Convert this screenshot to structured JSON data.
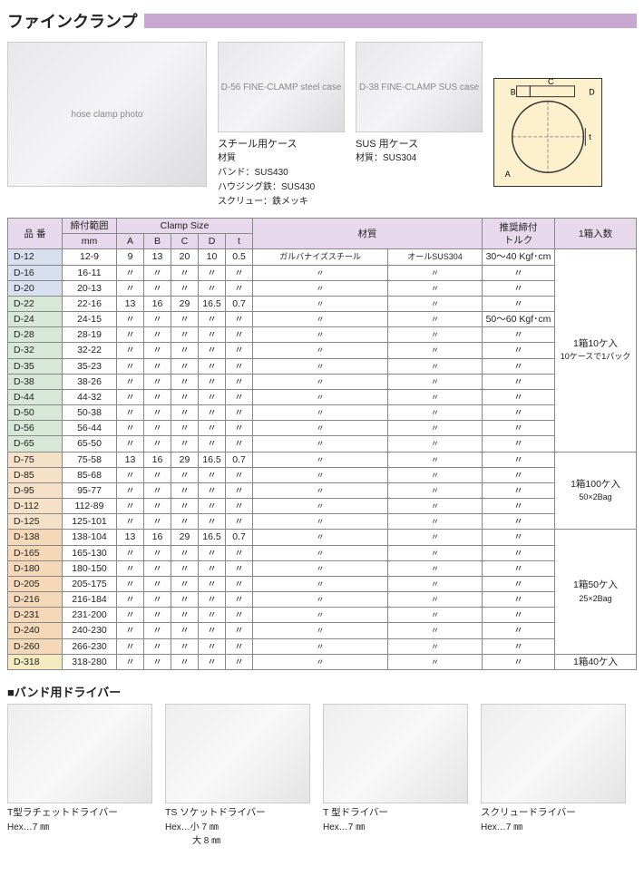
{
  "title": "ファインクランプ",
  "title_stripe_color": "#c8a8d0",
  "photos": {
    "clamp_alt": "hose clamp photo",
    "case_steel_alt": "D-56 FINE-CLAMP steel case",
    "case_sus_alt": "D-38 FINE-CLAMP SUS case"
  },
  "case_steel": {
    "label": "スチール用ケース",
    "lines": [
      "材質",
      "バンド：SUS430",
      "ハウジング鉄：SUS430",
      "スクリュー：鉄メッキ"
    ]
  },
  "case_sus": {
    "label": "SUS 用ケース",
    "lines": [
      "材質：SUS304"
    ]
  },
  "diagram_labels": {
    "A": "A",
    "B": "B",
    "C": "C",
    "D": "D",
    "t": "t"
  },
  "table": {
    "header_bg": "#e8d8ec",
    "group_bg": {
      "blue": "#d8e0ef",
      "green": "#d8e8d8",
      "orange": "#f5e0c8",
      "orange2": "#f5d8b8",
      "yellow": "#f5ebc0"
    },
    "columns": {
      "model": "品 番",
      "range": "締付範囲",
      "range_unit": "mm",
      "clamp_size": "Clamp Size",
      "clamp_sub": [
        "A",
        "B",
        "C",
        "D",
        "t"
      ],
      "material": "材質",
      "torque": "推奨締付\nトルク",
      "qty": "1箱入数"
    },
    "groups": [
      {
        "class": "row-blue",
        "qty": null,
        "rows": [
          {
            "model": "D-12",
            "range": "12-9",
            "A": "9",
            "B": "13",
            "C": "20",
            "D": "10",
            "t": "0.5",
            "mat1": "ガルバナイズスチール",
            "mat2": "オールSUS304",
            "torque": "30～40 Kgf･cm"
          },
          {
            "model": "D-16",
            "range": "16-11",
            "A": "〃",
            "B": "〃",
            "C": "〃",
            "D": "〃",
            "t": "〃",
            "mat1": "〃",
            "mat2": "〃",
            "torque": "〃"
          },
          {
            "model": "D-20",
            "range": "20-13",
            "A": "〃",
            "B": "〃",
            "C": "〃",
            "D": "〃",
            "t": "〃",
            "mat1": "〃",
            "mat2": "〃",
            "torque": "〃"
          }
        ]
      },
      {
        "class": "row-green",
        "qty": "1箱10ケ入",
        "qty_sub": "10ケースで1パック",
        "qty_span_includes_prev": true,
        "rows": [
          {
            "model": "D-22",
            "range": "22-16",
            "A": "13",
            "B": "16",
            "C": "29",
            "D": "16.5",
            "t": "0.7",
            "mat1": "〃",
            "mat2": "〃",
            "torque": "〃"
          },
          {
            "model": "D-24",
            "range": "24-15",
            "A": "〃",
            "B": "〃",
            "C": "〃",
            "D": "〃",
            "t": "〃",
            "mat1": "〃",
            "mat2": "〃",
            "torque": "50～60 Kgf･cm"
          },
          {
            "model": "D-28",
            "range": "28-19",
            "A": "〃",
            "B": "〃",
            "C": "〃",
            "D": "〃",
            "t": "〃",
            "mat1": "〃",
            "mat2": "〃",
            "torque": "〃"
          },
          {
            "model": "D-32",
            "range": "32-22",
            "A": "〃",
            "B": "〃",
            "C": "〃",
            "D": "〃",
            "t": "〃",
            "mat1": "〃",
            "mat2": "〃",
            "torque": "〃"
          },
          {
            "model": "D-35",
            "range": "35-23",
            "A": "〃",
            "B": "〃",
            "C": "〃",
            "D": "〃",
            "t": "〃",
            "mat1": "〃",
            "mat2": "〃",
            "torque": "〃"
          },
          {
            "model": "D-38",
            "range": "38-26",
            "A": "〃",
            "B": "〃",
            "C": "〃",
            "D": "〃",
            "t": "〃",
            "mat1": "〃",
            "mat2": "〃",
            "torque": "〃"
          },
          {
            "model": "D-44",
            "range": "44-32",
            "A": "〃",
            "B": "〃",
            "C": "〃",
            "D": "〃",
            "t": "〃",
            "mat1": "〃",
            "mat2": "〃",
            "torque": "〃"
          },
          {
            "model": "D-50",
            "range": "50-38",
            "A": "〃",
            "B": "〃",
            "C": "〃",
            "D": "〃",
            "t": "〃",
            "mat1": "〃",
            "mat2": "〃",
            "torque": "〃"
          },
          {
            "model": "D-56",
            "range": "56-44",
            "A": "〃",
            "B": "〃",
            "C": "〃",
            "D": "〃",
            "t": "〃",
            "mat1": "〃",
            "mat2": "〃",
            "torque": "〃"
          },
          {
            "model": "D-65",
            "range": "65-50",
            "A": "〃",
            "B": "〃",
            "C": "〃",
            "D": "〃",
            "t": "〃",
            "mat1": "〃",
            "mat2": "〃",
            "torque": "〃"
          }
        ]
      },
      {
        "class": "row-orange",
        "qty": "1箱100ケ入",
        "qty_sub": "50×2Bag",
        "rows": [
          {
            "model": "D-75",
            "range": "75-58",
            "A": "13",
            "B": "16",
            "C": "29",
            "D": "16.5",
            "t": "0.7",
            "mat1": "〃",
            "mat2": "〃",
            "torque": "〃"
          },
          {
            "model": "D-85",
            "range": "85-68",
            "A": "〃",
            "B": "〃",
            "C": "〃",
            "D": "〃",
            "t": "〃",
            "mat1": "〃",
            "mat2": "〃",
            "torque": "〃"
          },
          {
            "model": "D-95",
            "range": "95-77",
            "A": "〃",
            "B": "〃",
            "C": "〃",
            "D": "〃",
            "t": "〃",
            "mat1": "〃",
            "mat2": "〃",
            "torque": "〃"
          },
          {
            "model": "D-112",
            "range": "112-89",
            "A": "〃",
            "B": "〃",
            "C": "〃",
            "D": "〃",
            "t": "〃",
            "mat1": "〃",
            "mat2": "〃",
            "torque": "〃"
          },
          {
            "model": "D-125",
            "range": "125-101",
            "A": "〃",
            "B": "〃",
            "C": "〃",
            "D": "〃",
            "t": "〃",
            "mat1": "〃",
            "mat2": "〃",
            "torque": "〃"
          }
        ]
      },
      {
        "class": "row-orange2",
        "qty": "1箱50ケ入",
        "qty_sub": "25×2Bag",
        "rows": [
          {
            "model": "D-138",
            "range": "138-104",
            "A": "13",
            "B": "16",
            "C": "29",
            "D": "16.5",
            "t": "0.7",
            "mat1": "〃",
            "mat2": "〃",
            "torque": "〃"
          },
          {
            "model": "D-165",
            "range": "165-130",
            "A": "〃",
            "B": "〃",
            "C": "〃",
            "D": "〃",
            "t": "〃",
            "mat1": "〃",
            "mat2": "〃",
            "torque": "〃"
          },
          {
            "model": "D-180",
            "range": "180-150",
            "A": "〃",
            "B": "〃",
            "C": "〃",
            "D": "〃",
            "t": "〃",
            "mat1": "〃",
            "mat2": "〃",
            "torque": "〃"
          },
          {
            "model": "D-205",
            "range": "205-175",
            "A": "〃",
            "B": "〃",
            "C": "〃",
            "D": "〃",
            "t": "〃",
            "mat1": "〃",
            "mat2": "〃",
            "torque": "〃"
          },
          {
            "model": "D-216",
            "range": "216-184",
            "A": "〃",
            "B": "〃",
            "C": "〃",
            "D": "〃",
            "t": "〃",
            "mat1": "〃",
            "mat2": "〃",
            "torque": "〃"
          },
          {
            "model": "D-231",
            "range": "231-200",
            "A": "〃",
            "B": "〃",
            "C": "〃",
            "D": "〃",
            "t": "〃",
            "mat1": "〃",
            "mat2": "〃",
            "torque": "〃"
          },
          {
            "model": "D-240",
            "range": "240-230",
            "A": "〃",
            "B": "〃",
            "C": "〃",
            "D": "〃",
            "t": "〃",
            "mat1": "〃",
            "mat2": "〃",
            "torque": "〃"
          },
          {
            "model": "D-260",
            "range": "266-230",
            "A": "〃",
            "B": "〃",
            "C": "〃",
            "D": "〃",
            "t": "〃",
            "mat1": "〃",
            "mat2": "〃",
            "torque": "〃"
          }
        ]
      },
      {
        "class": "row-yellow",
        "qty": "1箱40ケ入",
        "rows": [
          {
            "model": "D-318",
            "range": "318-280",
            "A": "〃",
            "B": "〃",
            "C": "〃",
            "D": "〃",
            "t": "〃",
            "mat1": "〃",
            "mat2": "〃",
            "torque": "〃"
          }
        ]
      }
    ]
  },
  "drivers": {
    "title": "■バンド用ドライバー",
    "items": [
      {
        "name": "T型ラチェットドライバー",
        "sub": "Hex…7 ㎜"
      },
      {
        "name": "TS ソケットドライバー",
        "sub": "Hex…小 7 ㎜\n　　　大 8 ㎜"
      },
      {
        "name": "T 型ドライバー",
        "sub": "Hex…7 ㎜"
      },
      {
        "name": "スクリュードライバー",
        "sub": "Hex…7 ㎜"
      }
    ]
  }
}
